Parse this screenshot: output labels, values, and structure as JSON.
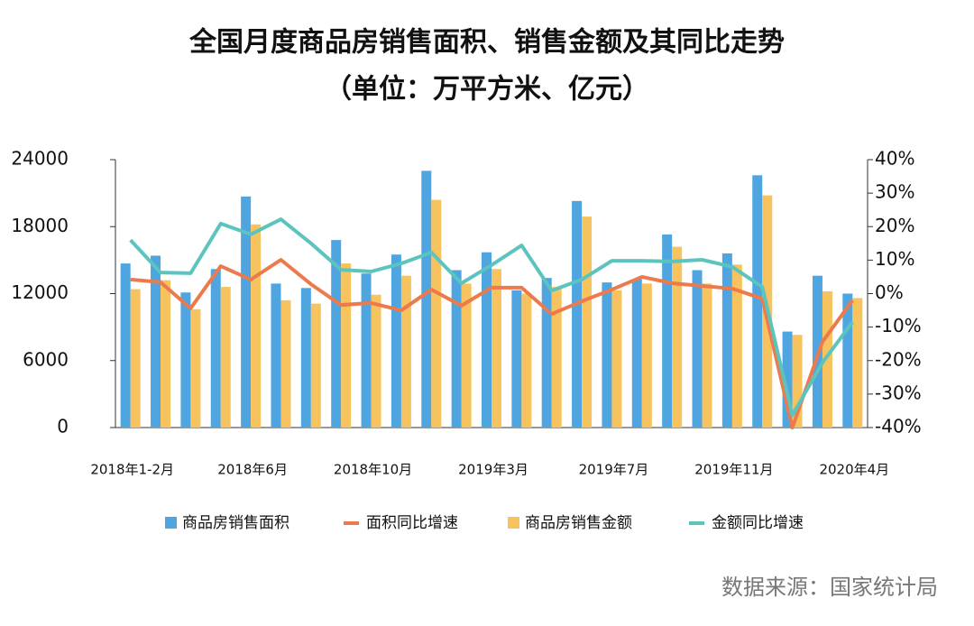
{
  "chart_data": {
    "type": "bar_line",
    "title": "全国月度商品房销售面积、销售金额及其同比走势",
    "subtitle": "（单位：万平方米、亿元）",
    "source": "数据来源：国家统计局",
    "categories": [
      "2018年1-2月",
      null,
      null,
      null,
      "2018年6月",
      null,
      null,
      null,
      "2018年10月",
      null,
      null,
      null,
      "2019年3月",
      null,
      null,
      null,
      "2019年7月",
      null,
      null,
      null,
      "2019年11月",
      null,
      null,
      null,
      "2020年4月"
    ],
    "series": [
      {
        "name": "商品房销售面积",
        "kind": "bar",
        "color": "#4ea5e0",
        "values": [
          14700,
          15400,
          12100,
          14200,
          20700,
          12900,
          12500,
          16800,
          13800,
          15500,
          23000,
          14100,
          15700,
          12300,
          13400,
          20300,
          13000,
          13300,
          17300,
          14100,
          15600,
          22600,
          8600,
          13600,
          12000
        ]
      },
      {
        "name": "面积同比增速",
        "kind": "line",
        "axis": "y2",
        "color": "#ec7a4c",
        "values": [
          4.2,
          3.4,
          -4.4,
          8.2,
          4.2,
          10.1,
          2.8,
          -3.4,
          -2.8,
          -5.0,
          1.2,
          -3.6,
          1.8,
          1.8,
          -6.1,
          -2.3,
          1.2,
          5.0,
          3.1,
          2.3,
          1.5,
          -1.5,
          -40.0,
          -14.4,
          -2.0
        ]
      },
      {
        "name": "商品房销售金额",
        "kind": "bar",
        "color": "#f7c35f",
        "values": [
          12400,
          13200,
          10600,
          12600,
          18200,
          11400,
          11100,
          14700,
          11900,
          13600,
          20400,
          12900,
          14200,
          12000,
          12600,
          18900,
          12300,
          12900,
          16200,
          12900,
          14600,
          20800,
          8300,
          12200,
          11600
        ]
      },
      {
        "name": "金额同比增速",
        "kind": "line",
        "axis": "y2",
        "color": "#5cc4bf",
        "values": [
          16.0,
          6.3,
          6.1,
          20.9,
          17.7,
          22.2,
          15.0,
          7.1,
          6.6,
          9.0,
          12.3,
          3.1,
          8.5,
          14.4,
          0.9,
          4.2,
          9.8,
          9.8,
          9.6,
          10.1,
          8.0,
          2.0,
          -36.3,
          -20.6,
          -8.5
        ]
      }
    ],
    "ylim": [
      0,
      24000
    ],
    "yticks": [
      0,
      6000,
      12000,
      18000,
      24000
    ],
    "y2lim": [
      -40,
      40
    ],
    "y2ticks": [
      {
        "value": -40,
        "label": "-40%"
      },
      {
        "value": -30,
        "label": "-30%"
      },
      {
        "value": -20,
        "label": "-20%"
      },
      {
        "value": -10,
        "label": "-10%"
      },
      {
        "value": 0,
        "label": "0%"
      },
      {
        "value": 10,
        "label": "10%"
      },
      {
        "value": 20,
        "label": "20%"
      },
      {
        "value": 30,
        "label": "30%"
      },
      {
        "value": 40,
        "label": "40%"
      }
    ],
    "legend": "bottom"
  }
}
